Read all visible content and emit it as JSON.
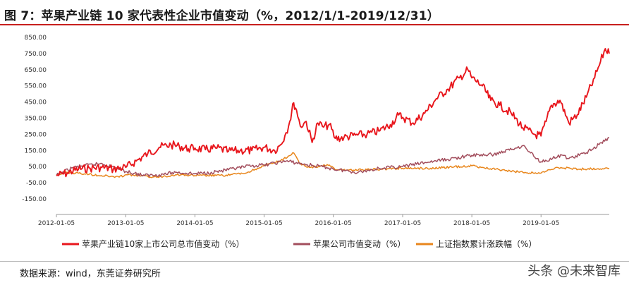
{
  "header": {
    "title": "图 7：苹果产业链 10 家代表性企业市值变动（%，2012/1/1-2019/12/31）"
  },
  "footer": {
    "source": "数据来源：wind，东莞证券研究所",
    "watermark": "头条 @未来智库"
  },
  "chart_data": {
    "type": "line",
    "title": "",
    "xlabel": "",
    "ylabel": "",
    "ylim": [
      -150,
      850
    ],
    "xlim": [
      "2012-01-05",
      "2019-12-31"
    ],
    "y_ticks": [
      "850.00",
      "750.00",
      "650.00",
      "550.00",
      "450.00",
      "350.00",
      "250.00",
      "150.00",
      "50.00",
      "-50.00",
      "-150.00"
    ],
    "x_ticks": [
      "2012-01-05",
      "2013-01-05",
      "2014-01-05",
      "2015-01-05",
      "2016-01-05",
      "2017-01-05",
      "2018-01-05",
      "2019-01-05"
    ],
    "grid": false,
    "legend_position": "bottom",
    "series": [
      {
        "name": "苹果产业链10家上市公司总市值变动（%）",
        "color": "#e8161c",
        "points": [
          [
            "2012-01-05",
            -5
          ],
          [
            "2012-03-01",
            10
          ],
          [
            "2012-05-01",
            35
          ],
          [
            "2012-07-01",
            40
          ],
          [
            "2012-09-01",
            45
          ],
          [
            "2012-11-01",
            35
          ],
          [
            "2013-01-05",
            45
          ],
          [
            "2013-03-01",
            85
          ],
          [
            "2013-05-01",
            130
          ],
          [
            "2013-07-01",
            170
          ],
          [
            "2013-09-01",
            185
          ],
          [
            "2013-10-15",
            175
          ],
          [
            "2013-12-01",
            160
          ],
          [
            "2014-01-05",
            165
          ],
          [
            "2014-03-01",
            155
          ],
          [
            "2014-05-01",
            165
          ],
          [
            "2014-07-01",
            145
          ],
          [
            "2014-09-01",
            150
          ],
          [
            "2014-11-01",
            150
          ],
          [
            "2015-01-05",
            170
          ],
          [
            "2015-03-01",
            150
          ],
          [
            "2015-04-01",
            185
          ],
          [
            "2015-05-01",
            260
          ],
          [
            "2015-05-20",
            330
          ],
          [
            "2015-06-10",
            445
          ],
          [
            "2015-06-25",
            400
          ],
          [
            "2015-07-15",
            300
          ],
          [
            "2015-08-15",
            330
          ],
          [
            "2015-09-15",
            200
          ],
          [
            "2015-10-15",
            320
          ],
          [
            "2015-11-15",
            295
          ],
          [
            "2015-12-15",
            310
          ],
          [
            "2016-01-15",
            225
          ],
          [
            "2016-03-01",
            230
          ],
          [
            "2016-05-01",
            245
          ],
          [
            "2016-07-01",
            250
          ],
          [
            "2016-09-01",
            270
          ],
          [
            "2016-11-01",
            310
          ],
          [
            "2016-12-15",
            370
          ],
          [
            "2017-01-05",
            355
          ],
          [
            "2017-03-01",
            320
          ],
          [
            "2017-05-01",
            380
          ],
          [
            "2017-07-01",
            470
          ],
          [
            "2017-09-01",
            530
          ],
          [
            "2017-11-01",
            600
          ],
          [
            "2017-12-15",
            650
          ],
          [
            "2018-01-05",
            600
          ],
          [
            "2018-03-01",
            550
          ],
          [
            "2018-04-15",
            460
          ],
          [
            "2018-06-01",
            430
          ],
          [
            "2018-08-01",
            380
          ],
          [
            "2018-10-01",
            290
          ],
          [
            "2018-12-01",
            250
          ],
          [
            "2019-01-05",
            240
          ],
          [
            "2019-02-01",
            330
          ],
          [
            "2019-03-01",
            430
          ],
          [
            "2019-04-15",
            460
          ],
          [
            "2019-06-01",
            320
          ],
          [
            "2019-07-15",
            370
          ],
          [
            "2019-09-01",
            480
          ],
          [
            "2019-10-15",
            600
          ],
          [
            "2019-11-15",
            700
          ],
          [
            "2019-12-10",
            780
          ],
          [
            "2019-12-31",
            750
          ]
        ]
      },
      {
        "name": "苹果公司市值变动（%）",
        "color": "#a24d5c",
        "points": [
          [
            "2012-01-05",
            -5
          ],
          [
            "2012-04-01",
            45
          ],
          [
            "2012-09-01",
            70
          ],
          [
            "2012-12-01",
            35
          ],
          [
            "2013-01-05",
            20
          ],
          [
            "2013-04-15",
            -5
          ],
          [
            "2013-07-01",
            0
          ],
          [
            "2013-10-01",
            15
          ],
          [
            "2014-01-05",
            5
          ],
          [
            "2014-04-01",
            15
          ],
          [
            "2014-07-01",
            30
          ],
          [
            "2014-11-01",
            55
          ],
          [
            "2015-01-05",
            60
          ],
          [
            "2015-05-01",
            85
          ],
          [
            "2015-08-01",
            65
          ],
          [
            "2015-12-01",
            45
          ],
          [
            "2016-01-05",
            35
          ],
          [
            "2016-05-15",
            15
          ],
          [
            "2016-09-01",
            40
          ],
          [
            "2017-01-05",
            50
          ],
          [
            "2017-05-01",
            75
          ],
          [
            "2017-09-01",
            95
          ],
          [
            "2018-01-05",
            120
          ],
          [
            "2018-05-01",
            125
          ],
          [
            "2018-10-01",
            180
          ],
          [
            "2018-12-15",
            100
          ],
          [
            "2019-01-05",
            80
          ],
          [
            "2019-05-01",
            120
          ],
          [
            "2019-06-01",
            100
          ],
          [
            "2019-09-01",
            135
          ],
          [
            "2019-12-31",
            230
          ]
        ]
      },
      {
        "name": "上证指数累计涨跌幅（%）",
        "color": "#e8861c",
        "points": [
          [
            "2012-01-05",
            0
          ],
          [
            "2012-03-01",
            15
          ],
          [
            "2012-06-01",
            5
          ],
          [
            "2012-12-01",
            -15
          ],
          [
            "2013-01-05",
            0
          ],
          [
            "2013-06-15",
            -15
          ],
          [
            "2013-10-01",
            0
          ],
          [
            "2014-01-05",
            -5
          ],
          [
            "2014-06-01",
            -5
          ],
          [
            "2014-10-01",
            10
          ],
          [
            "2014-12-01",
            40
          ],
          [
            "2015-01-05",
            55
          ],
          [
            "2015-04-01",
            85
          ],
          [
            "2015-06-10",
            135
          ],
          [
            "2015-07-10",
            70
          ],
          [
            "2015-09-01",
            45
          ],
          [
            "2015-12-15",
            60
          ],
          [
            "2016-01-15",
            30
          ],
          [
            "2016-06-01",
            30
          ],
          [
            "2017-01-05",
            40
          ],
          [
            "2017-06-01",
            40
          ],
          [
            "2018-01-05",
            55
          ],
          [
            "2018-03-01",
            45
          ],
          [
            "2018-07-01",
            25
          ],
          [
            "2018-10-01",
            15
          ],
          [
            "2019-01-05",
            10
          ],
          [
            "2019-04-01",
            45
          ],
          [
            "2019-08-01",
            35
          ],
          [
            "2019-12-31",
            40
          ]
        ]
      }
    ]
  }
}
